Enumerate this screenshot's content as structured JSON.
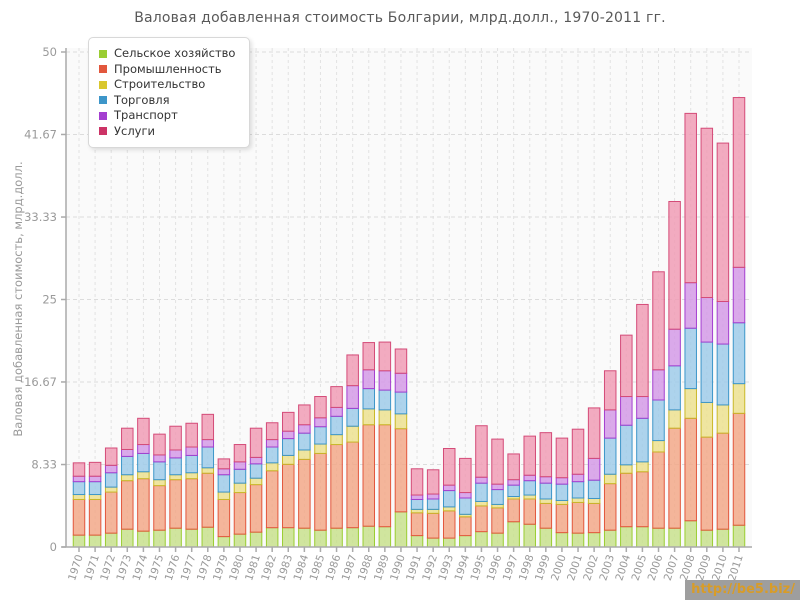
{
  "chart_data": {
    "type": "bar",
    "stacked": true,
    "title": "Валовая добавленная стоимость Болгарии, млрд.долл., 1970-2011 гг.",
    "ylabel": "Валовая добавленная стоимость, млрд.долл.",
    "xlabel": "",
    "ylim": [
      0,
      50
    ],
    "y_ticks": [
      0,
      8.33,
      16.67,
      25,
      33.33,
      41.67,
      50
    ],
    "y_tick_labels": [
      "0",
      "8.33",
      "16.67",
      "25",
      "33.33",
      "41.67",
      "50"
    ],
    "grid": true,
    "legend_position": "top-left",
    "categories": [
      1970,
      1971,
      1972,
      1973,
      1974,
      1975,
      1976,
      1977,
      1978,
      1979,
      1980,
      1981,
      1982,
      1983,
      1984,
      1985,
      1986,
      1987,
      1988,
      1989,
      1990,
      1991,
      1992,
      1993,
      1994,
      1995,
      1996,
      1997,
      1998,
      1999,
      2000,
      2001,
      2002,
      2003,
      2004,
      2005,
      2006,
      2007,
      2008,
      2009,
      2010,
      2011
    ],
    "series": [
      {
        "name": "Сельское хозяйство",
        "legend_color": "#9acd32",
        "fill": "#c8e18d",
        "border": "#9acd32",
        "values": [
          1.2,
          1.2,
          1.4,
          1.8,
          1.6,
          1.7,
          1.9,
          1.8,
          2.0,
          1.05,
          1.3,
          1.5,
          1.95,
          1.95,
          1.9,
          1.7,
          1.9,
          1.95,
          2.1,
          2.05,
          3.55,
          1.15,
          0.9,
          0.9,
          1.15,
          1.55,
          1.4,
          2.55,
          2.3,
          1.9,
          1.45,
          1.4,
          1.45,
          1.7,
          2.05,
          2.05,
          1.9,
          1.9,
          2.65,
          1.7,
          1.8,
          2.2
        ]
      },
      {
        "name": "Промышленность",
        "legend_color": "#e2573d",
        "fill": "#f2a888",
        "border": "#e2573d",
        "values": [
          3.6,
          3.6,
          4.15,
          4.9,
          5.3,
          4.5,
          4.9,
          5.1,
          5.45,
          3.75,
          4.2,
          4.8,
          5.75,
          6.4,
          6.95,
          7.75,
          8.45,
          8.65,
          10.25,
          10.3,
          8.4,
          2.3,
          2.5,
          2.75,
          1.9,
          2.6,
          2.55,
          2.3,
          2.55,
          2.5,
          2.85,
          3.1,
          2.95,
          4.7,
          5.4,
          5.55,
          7.7,
          10.1,
          10.35,
          9.4,
          9.7,
          11.3
        ]
      },
      {
        "name": "Строительство",
        "legend_color": "#d9c72e",
        "fill": "#ece18f",
        "border": "#c9b82a",
        "values": [
          0.5,
          0.5,
          0.5,
          0.6,
          0.7,
          0.6,
          0.5,
          0.6,
          0.55,
          0.75,
          0.95,
          0.65,
          0.8,
          0.9,
          0.95,
          0.95,
          1.0,
          1.6,
          1.6,
          1.5,
          1.5,
          0.35,
          0.4,
          0.4,
          0.25,
          0.45,
          0.35,
          0.25,
          0.4,
          0.45,
          0.4,
          0.45,
          0.5,
          0.95,
          0.85,
          1.0,
          1.15,
          1.85,
          3.0,
          3.5,
          2.85,
          3.0
        ]
      },
      {
        "name": "Торговля",
        "legend_color": "#3d96c9",
        "fill": "#9fcbe9",
        "border": "#3d96c9",
        "values": [
          1.3,
          1.3,
          1.45,
          1.85,
          1.85,
          1.8,
          1.7,
          1.75,
          2.1,
          1.75,
          1.4,
          1.45,
          1.6,
          1.7,
          1.7,
          1.75,
          1.85,
          1.8,
          2.05,
          2.0,
          2.2,
          1.0,
          1.05,
          1.65,
          1.65,
          1.85,
          1.5,
          1.15,
          1.45,
          1.6,
          1.65,
          1.65,
          1.85,
          3.65,
          4.0,
          4.4,
          4.1,
          4.45,
          6.1,
          6.1,
          6.15,
          6.15
        ]
      },
      {
        "name": "Транспорт",
        "legend_color": "#a43fd0",
        "fill": "#d49ae6",
        "border": "#a43fd0",
        "values": [
          0.55,
          0.55,
          0.75,
          0.7,
          0.9,
          0.7,
          0.8,
          0.85,
          0.75,
          0.6,
          0.75,
          0.65,
          0.75,
          0.75,
          0.85,
          0.9,
          0.9,
          2.3,
          1.9,
          1.95,
          1.9,
          0.45,
          0.5,
          0.55,
          0.55,
          0.6,
          0.55,
          0.55,
          0.55,
          0.65,
          0.65,
          0.75,
          2.2,
          2.85,
          2.9,
          2.2,
          3.05,
          3.7,
          4.6,
          4.5,
          4.3,
          5.6
        ]
      },
      {
        "name": "Услуги",
        "legend_color": "#cc3366",
        "fill": "#f09cb5",
        "border": "#d44b78",
        "values": [
          1.35,
          1.4,
          1.75,
          2.15,
          2.65,
          2.1,
          2.4,
          2.4,
          2.55,
          1.0,
          1.75,
          2.95,
          1.7,
          1.9,
          2.0,
          2.15,
          2.1,
          3.1,
          2.75,
          2.9,
          2.45,
          2.65,
          2.45,
          3.7,
          3.45,
          5.2,
          4.55,
          2.6,
          3.95,
          4.45,
          4.0,
          4.55,
          5.1,
          3.95,
          6.2,
          9.3,
          9.9,
          12.9,
          17.1,
          17.1,
          16.0,
          17.15
        ]
      }
    ]
  },
  "watermark": {
    "text": "http://be5.biz/",
    "color": "#d89c28",
    "bg": "#9e9e9e"
  }
}
